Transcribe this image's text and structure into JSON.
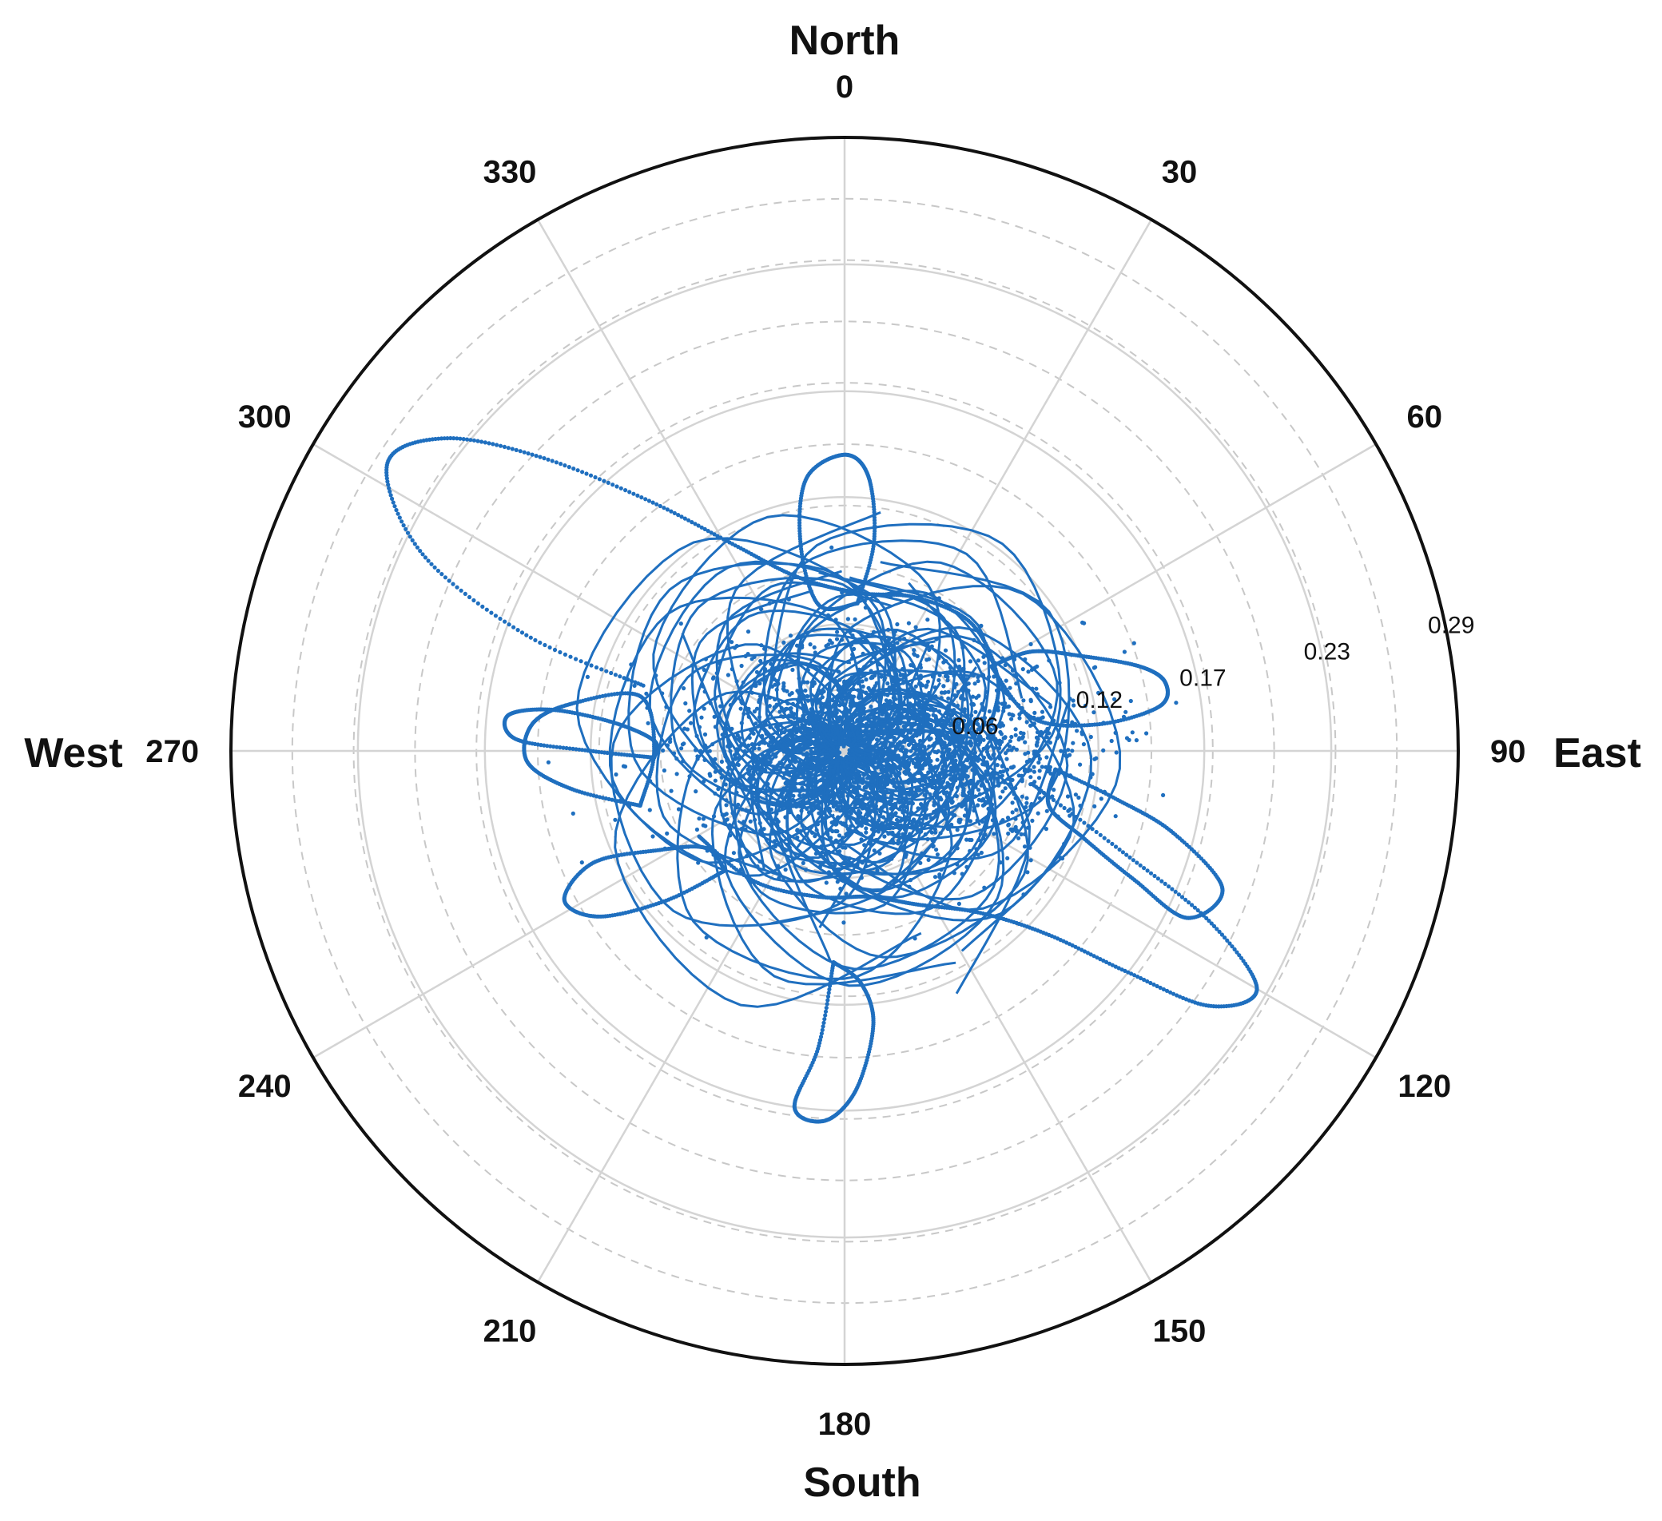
{
  "chart_data": {
    "type": "scatter",
    "coordinate_system": "polar",
    "theta_direction": "clockwise",
    "theta_zero": "top",
    "direction_labels": {
      "north": "North",
      "east": "East",
      "south": "South",
      "west": "West"
    },
    "angle_ticks": [
      {
        "deg": 0,
        "label": "0"
      },
      {
        "deg": 30,
        "label": "30"
      },
      {
        "deg": 60,
        "label": "60"
      },
      {
        "deg": 90,
        "label": "90"
      },
      {
        "deg": 120,
        "label": "120"
      },
      {
        "deg": 150,
        "label": "150"
      },
      {
        "deg": 180,
        "label": "180"
      },
      {
        "deg": 210,
        "label": "210"
      },
      {
        "deg": 240,
        "label": "240"
      },
      {
        "deg": 270,
        "label": "270"
      },
      {
        "deg": 300,
        "label": "300"
      },
      {
        "deg": 330,
        "label": "330"
      }
    ],
    "radial_ticks": [
      {
        "r": 0.06,
        "label": "0.06"
      },
      {
        "r": 0.12,
        "label": "0.12"
      },
      {
        "r": 0.17,
        "label": "0.17"
      },
      {
        "r": 0.23,
        "label": "0.23"
      },
      {
        "r": 0.29,
        "label": "0.29"
      }
    ],
    "rlim": [
      0,
      0.29
    ],
    "grid": true,
    "series_color": "#1f6fbf",
    "paths": [
      {
        "name_ref": "large-loop-northwest",
        "points": [
          [
            0.1,
            288
          ],
          [
            0.16,
            290
          ],
          [
            0.22,
            295
          ],
          [
            0.255,
            302
          ],
          [
            0.24,
            308
          ],
          [
            0.2,
            314
          ],
          [
            0.15,
            322
          ],
          [
            0.11,
            332
          ],
          [
            0.085,
            345
          ],
          [
            0.075,
            5
          ],
          [
            0.08,
            25
          ],
          [
            0.085,
            45
          ],
          [
            0.08,
            65
          ],
          [
            0.07,
            80
          ]
        ]
      },
      {
        "name_ref": "large-loop-southeast",
        "points": [
          [
            0.09,
            100
          ],
          [
            0.14,
            110
          ],
          [
            0.19,
            115
          ],
          [
            0.225,
            120
          ],
          [
            0.21,
            125
          ],
          [
            0.17,
            128
          ],
          [
            0.13,
            132
          ],
          [
            0.1,
            140
          ],
          [
            0.08,
            155
          ],
          [
            0.07,
            170
          ],
          [
            0.07,
            190
          ],
          [
            0.075,
            215
          ],
          [
            0.08,
            240
          ]
        ]
      },
      {
        "name_ref": "ring-west",
        "points": [
          [
            0.1,
            255
          ],
          [
            0.13,
            262
          ],
          [
            0.15,
            268
          ],
          [
            0.148,
            275
          ],
          [
            0.13,
            280
          ],
          [
            0.1,
            285
          ],
          [
            0.09,
            270
          ],
          [
            0.1,
            255
          ]
        ]
      },
      {
        "name_ref": "ring-northeast",
        "points": [
          [
            0.08,
            60
          ],
          [
            0.1,
            62
          ],
          [
            0.12,
            68
          ],
          [
            0.145,
            74
          ],
          [
            0.155,
            78
          ],
          [
            0.15,
            82
          ],
          [
            0.12,
            84
          ],
          [
            0.09,
            80
          ],
          [
            0.08,
            60
          ]
        ]
      },
      {
        "name_ref": "loop-south",
        "points": [
          [
            0.1,
            183
          ],
          [
            0.14,
            185
          ],
          [
            0.17,
            188
          ],
          [
            0.175,
            183
          ],
          [
            0.16,
            178
          ],
          [
            0.13,
            174
          ],
          [
            0.11,
            176
          ],
          [
            0.1,
            183
          ]
        ]
      },
      {
        "name_ref": "loop-north",
        "points": [
          [
            0.07,
            5
          ],
          [
            0.1,
            8
          ],
          [
            0.13,
            5
          ],
          [
            0.14,
            0
          ],
          [
            0.13,
            352
          ],
          [
            0.1,
            348
          ],
          [
            0.07,
            350
          ],
          [
            0.07,
            5
          ]
        ]
      },
      {
        "name_ref": "loop-east",
        "points": [
          [
            0.1,
            95
          ],
          [
            0.13,
            100
          ],
          [
            0.16,
            104
          ],
          [
            0.19,
            110
          ],
          [
            0.18,
            116
          ],
          [
            0.15,
            114
          ],
          [
            0.12,
            110
          ],
          [
            0.1,
            105
          ],
          [
            0.1,
            95
          ]
        ]
      },
      {
        "name_ref": "loop-southwest",
        "points": [
          [
            0.08,
            225
          ],
          [
            0.11,
            230
          ],
          [
            0.14,
            236
          ],
          [
            0.15,
            242
          ],
          [
            0.13,
            246
          ],
          [
            0.1,
            242
          ],
          [
            0.08,
            235
          ],
          [
            0.08,
            225
          ]
        ]
      },
      {
        "name_ref": "loop-west-far",
        "points": [
          [
            0.09,
            268
          ],
          [
            0.12,
            270
          ],
          [
            0.155,
            272
          ],
          [
            0.16,
            276
          ],
          [
            0.14,
            278
          ],
          [
            0.11,
            277
          ],
          [
            0.09,
            273
          ],
          [
            0.09,
            268
          ]
        ]
      }
    ],
    "core": {
      "center_r": 0.018,
      "center_deg": 95,
      "spread_r": 0.06,
      "ellipse_ratio": 0.45,
      "point_count": 2600
    }
  }
}
